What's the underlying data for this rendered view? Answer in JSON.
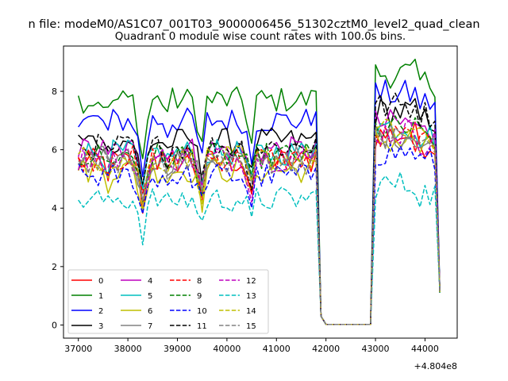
{
  "chart_data": {
    "type": "line",
    "suptitle": "n file: modeM0/AS1C07_001T03_9000006456_51302cztM0_level2_quad_clean",
    "title": "Quadrant 0 module wise count rates with 100.0s bins.",
    "xlabel": "",
    "ylabel": "",
    "offset_label": "+4.804e8",
    "xlim": [
      36700,
      44650
    ],
    "ylim": [
      -0.45,
      9.55
    ],
    "xticks": [
      37000,
      38000,
      39000,
      40000,
      41000,
      42000,
      43000,
      44000
    ],
    "yticks": [
      0,
      2,
      4,
      6,
      8
    ],
    "xtick_labels": [
      "37000",
      "38000",
      "39000",
      "40000",
      "41000",
      "42000",
      "43000",
      "44000"
    ],
    "ytick_labels": [
      "0",
      "2",
      "4",
      "6",
      "8"
    ],
    "legend_position": "lower-left",
    "x_segments": [
      {
        "start": 37000,
        "end": 41800,
        "step": 100
      },
      {
        "start": 41800,
        "end": 42900,
        "step": 100
      },
      {
        "start": 42900,
        "end": 44300,
        "step": 100
      }
    ],
    "series": [
      {
        "name": "0",
        "color": "#ff0000",
        "dash": "solid",
        "base": 5.6,
        "high": 6.5
      },
      {
        "name": "1",
        "color": "#008000",
        "dash": "solid",
        "base": 7.7,
        "high": 8.6
      },
      {
        "name": "2",
        "color": "#0000ff",
        "dash": "solid",
        "base": 7.0,
        "high": 7.9
      },
      {
        "name": "3",
        "color": "#000000",
        "dash": "solid",
        "base": 6.3,
        "high": 7.3
      },
      {
        "name": "4",
        "color": "#bf00bf",
        "dash": "solid",
        "base": 6.0,
        "high": 6.9
      },
      {
        "name": "5",
        "color": "#00bfbf",
        "dash": "solid",
        "base": 5.9,
        "high": 6.8
      },
      {
        "name": "6",
        "color": "#bfbf00",
        "dash": "solid",
        "base": 5.3,
        "high": 6.3
      },
      {
        "name": "7",
        "color": "#808080",
        "dash": "solid",
        "base": 5.7,
        "high": 6.5
      },
      {
        "name": "8",
        "color": "#ff0000",
        "dash": "dashed",
        "base": 5.7,
        "high": 6.4
      },
      {
        "name": "9",
        "color": "#008000",
        "dash": "dashed",
        "base": 5.8,
        "high": 6.7
      },
      {
        "name": "10",
        "color": "#0000ff",
        "dash": "dashed",
        "base": 5.1,
        "high": 5.9
      },
      {
        "name": "11",
        "color": "#000000",
        "dash": "dashed",
        "base": 6.1,
        "high": 7.5
      },
      {
        "name": "12",
        "color": "#bf00bf",
        "dash": "dashed",
        "base": 5.7,
        "high": 6.6
      },
      {
        "name": "13",
        "color": "#00bfbf",
        "dash": "dashed",
        "base": 4.3,
        "high": 4.8
      },
      {
        "name": "14",
        "color": "#bfbf00",
        "dash": "dashed",
        "base": 5.7,
        "high": 6.6
      },
      {
        "name": "15",
        "color": "#808080",
        "dash": "dashed",
        "base": 5.6,
        "high": 6.4
      }
    ]
  }
}
